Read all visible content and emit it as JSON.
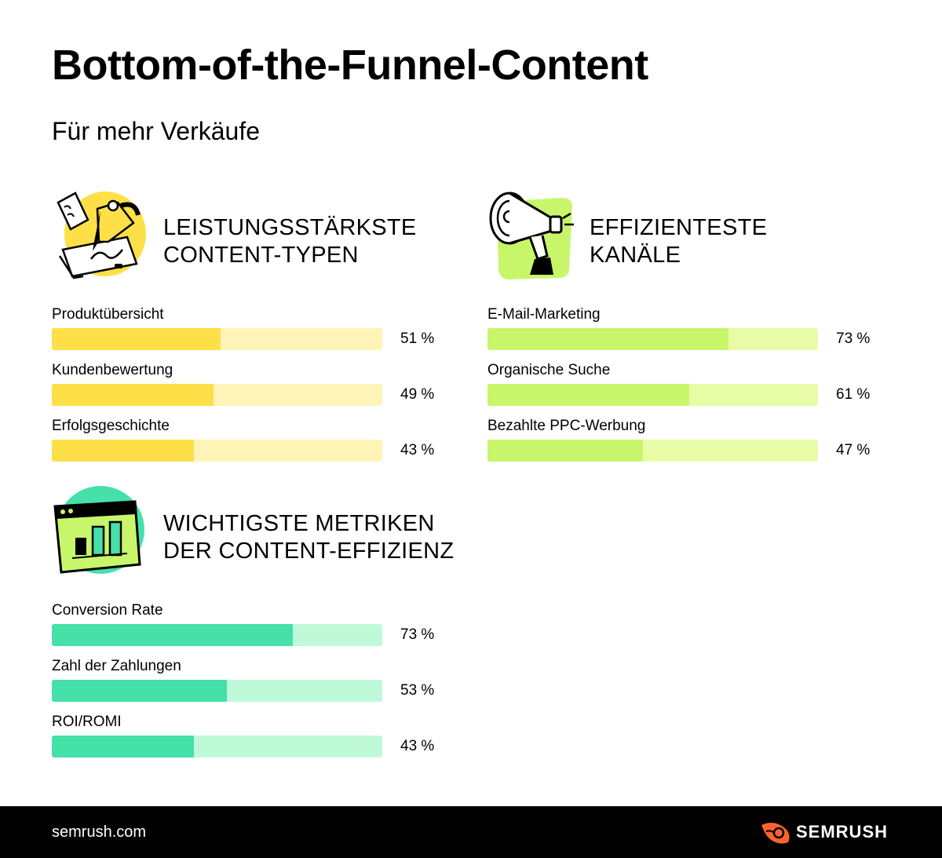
{
  "title": "Bottom-of-the-Funnel-Content",
  "subtitle": "Für mehr Verkäufe",
  "colors": {
    "yellow_fill": "#fde047",
    "yellow_track": "#fef4b8",
    "lime_fill": "#c8f66a",
    "lime_track": "#e8fca8",
    "green_fill": "#46e0a9",
    "green_track": "#bffad8",
    "footer_bg": "#000000",
    "brand_orange": "#ff642d"
  },
  "chart_data": [
    {
      "type": "bar",
      "title": "LEISTUNGSSTÄRKSTE CONTENT-TYPEN",
      "title_lines": [
        "LEISTUNGSSTÄRKSTE",
        "CONTENT-TYPEN"
      ],
      "icon": "pencil-hand-icon",
      "categories": [
        "Produktübersicht",
        "Kundenbewertung",
        "Erfolgsgeschichte"
      ],
      "values": [
        51,
        49,
        43
      ],
      "value_labels": [
        "51 %",
        "49 %",
        "43 %"
      ],
      "unit": "%",
      "xlim": [
        0,
        100
      ],
      "orientation": "horizontal"
    },
    {
      "type": "bar",
      "title": "EFFIZIENTESTE KANÄLE",
      "title_lines": [
        "EFFIZIENTESTE",
        "KANÄLE"
      ],
      "icon": "megaphone-icon",
      "categories": [
        "E-Mail-Marketing",
        "Organische Suche",
        "Bezahlte PPC-Werbung"
      ],
      "values": [
        73,
        61,
        47
      ],
      "value_labels": [
        "73 %",
        "61 %",
        "47 %"
      ],
      "unit": "%",
      "xlim": [
        0,
        100
      ],
      "orientation": "horizontal"
    },
    {
      "type": "bar",
      "title": "WICHTIGSTE METRIKEN DER CONTENT-EFFIZIENZ",
      "title_lines": [
        "WICHTIGSTE METRIKEN",
        "DER CONTENT-EFFIZIENZ"
      ],
      "icon": "bar-chart-window-icon",
      "categories": [
        "Conversion Rate",
        "Zahl der Zahlungen",
        "ROI/ROMI"
      ],
      "values": [
        73,
        53,
        43
      ],
      "value_labels": [
        "73 %",
        "53 %",
        "43 %"
      ],
      "unit": "%",
      "xlim": [
        0,
        100
      ],
      "orientation": "horizontal"
    }
  ],
  "footer": {
    "url": "semrush.com",
    "brand": "SEMRUSH",
    "logo_icon": "semrush-flame-icon"
  }
}
